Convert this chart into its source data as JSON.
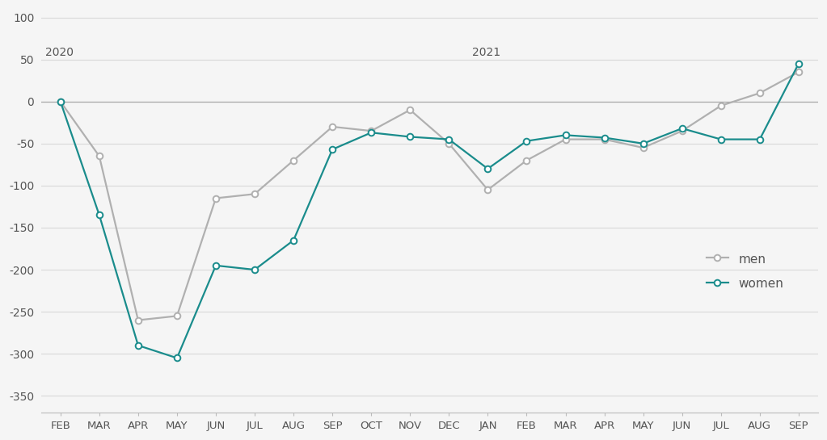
{
  "x_labels": [
    "FEB",
    "MAR",
    "APR",
    "MAY",
    "JUN",
    "JUL",
    "AUG",
    "SEP",
    "OCT",
    "NOV",
    "DEC",
    "JAN",
    "FEB",
    "MAR",
    "APR",
    "MAY",
    "JUN",
    "JUL",
    "AUG",
    "SEP"
  ],
  "year_labels": [
    {
      "text": "2020",
      "idx": 0
    },
    {
      "text": "2021",
      "idx": 11
    }
  ],
  "men": [
    0,
    -65,
    -260,
    -255,
    -115,
    -110,
    -70,
    -30,
    -35,
    -10,
    -50,
    -105,
    -70,
    -45,
    -45,
    -55,
    -35,
    -5,
    10,
    35
  ],
  "women": [
    0,
    -135,
    -290,
    -305,
    -195,
    -200,
    -165,
    -57,
    -37,
    -42,
    -45,
    -80,
    -47,
    -40,
    -43,
    -50,
    -32,
    -45,
    -45,
    45
  ],
  "men_color": "#b0b0b0",
  "women_color": "#1a8c8c",
  "ylim": [
    -370,
    110
  ],
  "yticks": [
    100,
    50,
    0,
    -50,
    -100,
    -150,
    -200,
    -250,
    -300,
    -350
  ],
  "ytick_labels": [
    "100",
    "50",
    "0",
    "-50",
    "-100",
    "-150",
    "-200",
    "-250",
    "-300",
    "-350"
  ],
  "background_color": "#f5f5f5",
  "grid_color": "#d8d8d8",
  "legend_men": "men",
  "legend_women": "women",
  "tick_color": "#888888",
  "label_color": "#555555"
}
